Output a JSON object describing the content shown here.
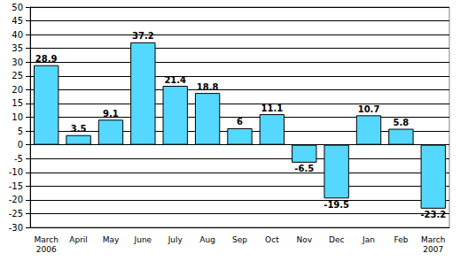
{
  "chart_data": {
    "type": "bar",
    "categories": [
      "March\n2006",
      "April",
      "May",
      "June",
      "July",
      "Aug",
      "Sep",
      "Oct",
      "Nov",
      "Dec",
      "Jan",
      "Feb",
      "March\n2007"
    ],
    "values": [
      28.9,
      3.5,
      9.1,
      37.2,
      21.4,
      18.8,
      6,
      11.1,
      -6.5,
      -19.5,
      10.7,
      5.8,
      -23.2
    ],
    "color": "#55d8ff",
    "ylim": [
      -30,
      50
    ],
    "yticks": [
      -30,
      -25,
      -20,
      -15,
      -10,
      -5,
      0,
      5,
      10,
      15,
      20,
      25,
      30,
      35,
      40,
      45,
      50
    ],
    "grid": true,
    "data_labels": true
  }
}
